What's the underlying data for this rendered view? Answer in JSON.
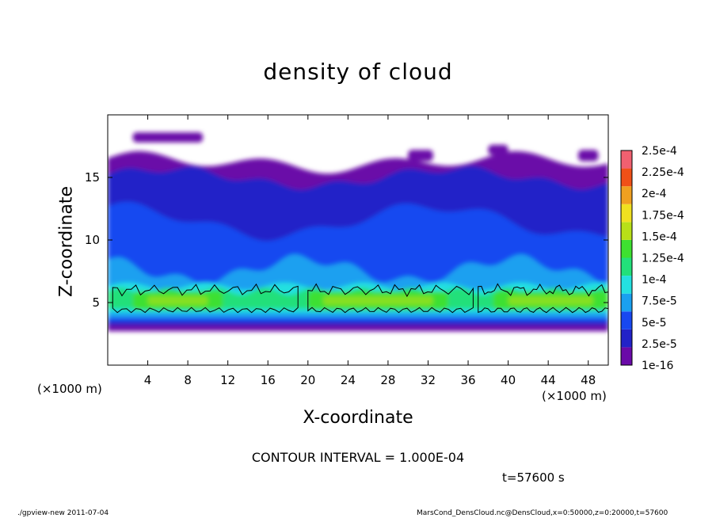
{
  "chart_data": {
    "type": "heatmap",
    "title": "density of cloud",
    "xlabel": "X-coordinate",
    "ylabel": "Z-coordinate",
    "x_unit_label": "(×1000 m)",
    "xlim": [
      0,
      50
    ],
    "ylim": [
      0,
      20
    ],
    "x_ticks": [
      "4",
      "8",
      "12",
      "16",
      "20",
      "24",
      "28",
      "32",
      "36",
      "40",
      "44",
      "48"
    ],
    "y_ticks": [
      "5",
      "10",
      "15"
    ],
    "colorbar_labels": [
      "1e-16",
      "2.5e-5",
      "5e-5",
      "7.5e-5",
      "1e-4",
      "1.25e-4",
      "1.5e-4",
      "1.75e-4",
      "2e-4",
      "2.25e-4",
      "2.5e-4"
    ],
    "colorbar_colors": [
      "#6a0aa8",
      "#2222c8",
      "#1848f0",
      "#1aa0f0",
      "#24e0e0",
      "#22e07a",
      "#3ee030",
      "#b8e018",
      "#f0e020",
      "#f0a020",
      "#f05018",
      "#f06070"
    ],
    "contour_interval": "CONTOUR INTERVAL = 1.000E-04",
    "time": "t=57600 s"
  },
  "footer": {
    "left": "./gpview-new   2011-07-04",
    "right": "MarsCond_DensCloud.nc@DensCloud,x=0:50000,z=0:20000,t=57600"
  }
}
